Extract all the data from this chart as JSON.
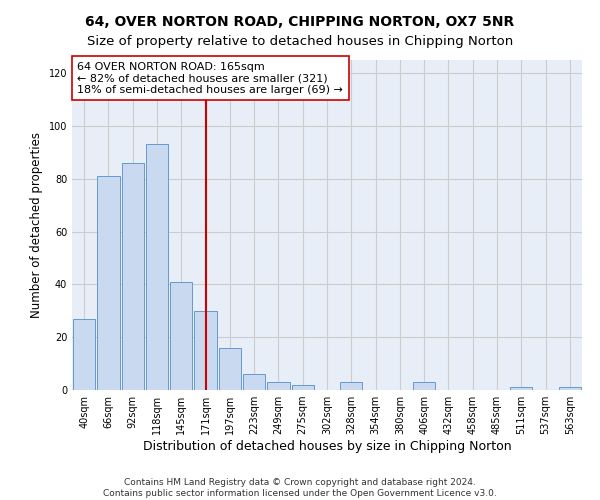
{
  "title": "64, OVER NORTON ROAD, CHIPPING NORTON, OX7 5NR",
  "subtitle": "Size of property relative to detached houses in Chipping Norton",
  "xlabel": "Distribution of detached houses by size in Chipping Norton",
  "ylabel": "Number of detached properties",
  "bin_labels": [
    "40sqm",
    "66sqm",
    "92sqm",
    "118sqm",
    "145sqm",
    "171sqm",
    "197sqm",
    "223sqm",
    "249sqm",
    "275sqm",
    "302sqm",
    "328sqm",
    "354sqm",
    "380sqm",
    "406sqm",
    "432sqm",
    "458sqm",
    "485sqm",
    "511sqm",
    "537sqm",
    "563sqm"
  ],
  "bar_values": [
    27,
    81,
    86,
    93,
    41,
    30,
    16,
    6,
    3,
    2,
    0,
    3,
    0,
    0,
    3,
    0,
    0,
    0,
    1,
    0,
    1
  ],
  "bar_color": "#c9d9ef",
  "bar_edge_color": "#6699cc",
  "vline_color": "#cc0000",
  "annotation_text": "64 OVER NORTON ROAD: 165sqm\n← 82% of detached houses are smaller (321)\n18% of semi-detached houses are larger (69) →",
  "annotation_box_color": "#ffffff",
  "annotation_box_edge": "#cc0000",
  "ylim": [
    0,
    125
  ],
  "yticks": [
    0,
    20,
    40,
    60,
    80,
    100,
    120
  ],
  "grid_color": "#cccccc",
  "bg_color": "#ffffff",
  "plot_bg_color": "#e8eef8",
  "footer": "Contains HM Land Registry data © Crown copyright and database right 2024.\nContains public sector information licensed under the Open Government Licence v3.0.",
  "title_fontsize": 10,
  "ylabel_fontsize": 8.5,
  "xlabel_fontsize": 9,
  "tick_fontsize": 7,
  "annotation_fontsize": 8,
  "footer_fontsize": 6.5
}
